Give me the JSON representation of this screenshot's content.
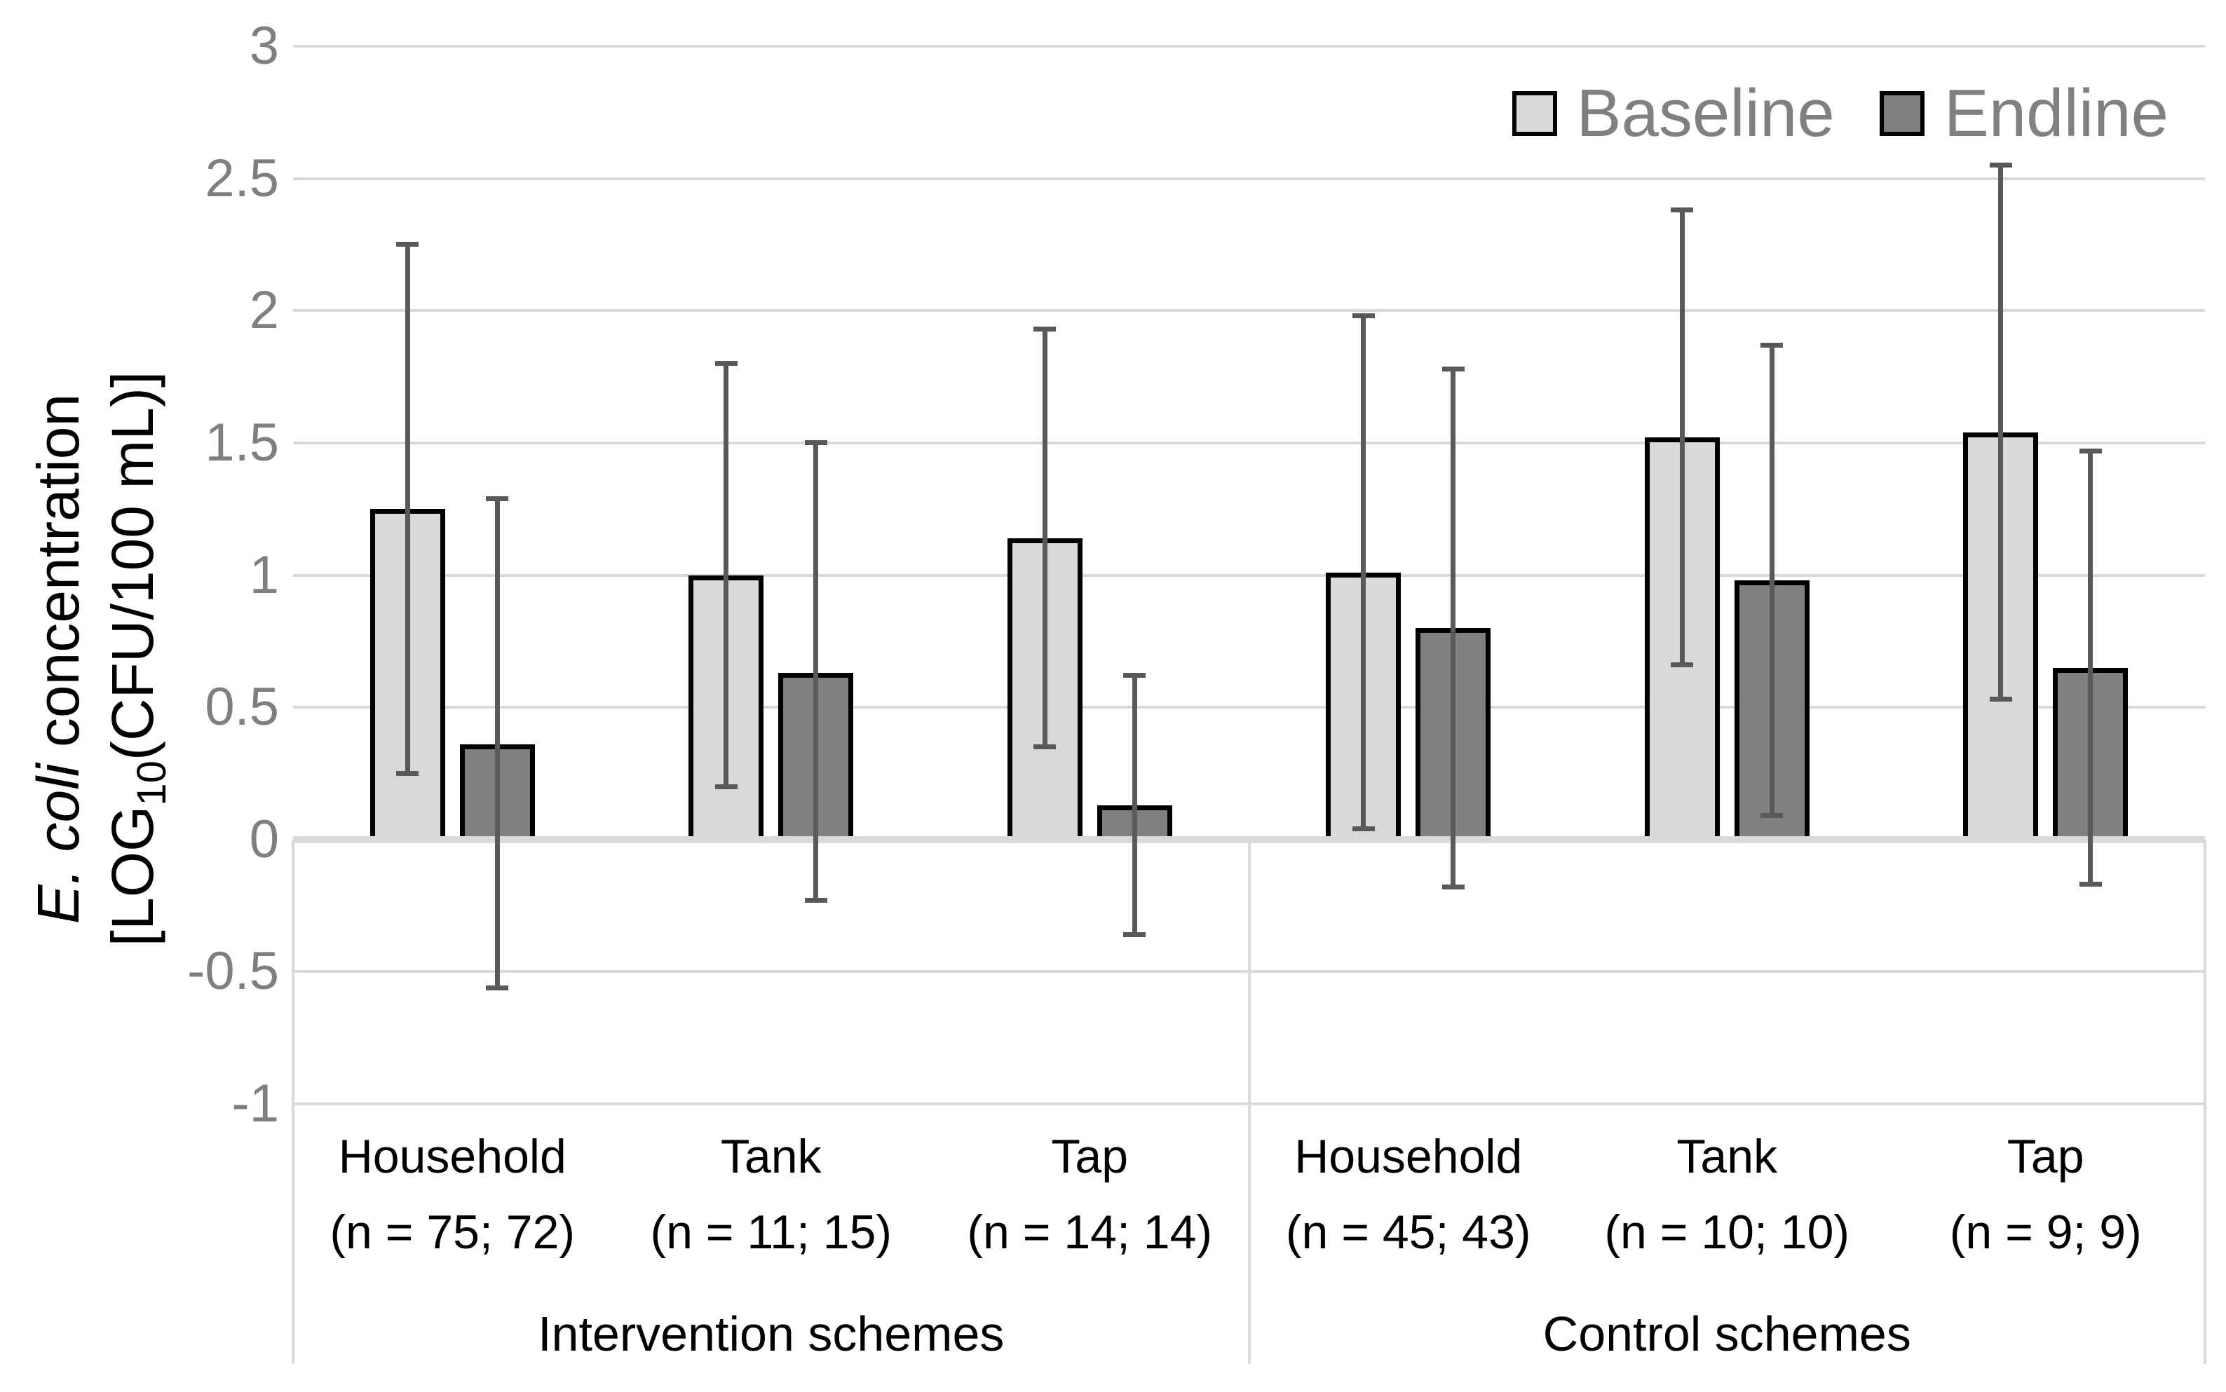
{
  "chart_data": {
    "type": "bar",
    "title": "",
    "ylabel_line1_italic": "E. coli",
    "ylabel_line1_rest": " concentration",
    "ylabel_line2_prefix": "[LOG",
    "ylabel_line2_sub": "10",
    "ylabel_line2_suffix": "(CFU/100 mL)]",
    "ylim": [
      -1,
      3
    ],
    "yticks": [
      3,
      2.5,
      2,
      1.5,
      1,
      0.5,
      0,
      -0.5,
      -1
    ],
    "ytick_labels": [
      "3",
      "2.5",
      "2",
      "1.5",
      "1",
      "0.5",
      "0",
      "-0.5",
      "-1"
    ],
    "grid": true,
    "legend_position": "top-right",
    "legend": [
      {
        "name": "Baseline",
        "color": "#d9d9d9"
      },
      {
        "name": "Endline",
        "color": "#808080"
      }
    ],
    "categories": [
      {
        "name": "Household",
        "n_label": "(n = 75; 72)",
        "section": 0
      },
      {
        "name": "Tank",
        "n_label": "(n = 11; 15)",
        "section": 0
      },
      {
        "name": "Tap",
        "n_label": "(n = 14; 14)",
        "section": 0
      },
      {
        "name": "Household",
        "n_label": "(n = 45; 43)",
        "section": 1
      },
      {
        "name": "Tank",
        "n_label": "(n = 10; 10)",
        "section": 1
      },
      {
        "name": "Tap",
        "n_label": "(n = 9; 9)",
        "section": 1
      }
    ],
    "sections": [
      {
        "label": "Intervention schemes",
        "category_count": 3
      },
      {
        "label": "Control schemes",
        "category_count": 3
      }
    ],
    "series": [
      {
        "name": "Baseline",
        "color": "#d9d9d9",
        "values": [
          1.25,
          1.0,
          1.14,
          1.01,
          1.52,
          1.54
        ],
        "err_low": [
          0.25,
          0.2,
          0.35,
          0.04,
          0.66,
          0.53
        ],
        "err_high": [
          2.25,
          1.8,
          1.93,
          1.98,
          2.38,
          2.55
        ]
      },
      {
        "name": "Endline",
        "color": "#808080",
        "values": [
          0.36,
          0.63,
          0.13,
          0.8,
          0.98,
          0.65
        ],
        "err_low": [
          -0.56,
          -0.23,
          -0.36,
          -0.18,
          0.09,
          -0.17
        ],
        "err_high": [
          1.29,
          1.5,
          0.62,
          1.78,
          1.87,
          1.47
        ]
      }
    ],
    "colors": {
      "bar_border": "#000000",
      "error_bar": "#595959",
      "gridline": "#d9d9d9",
      "tick_text": "#7f7f7f",
      "label_text": "#000000",
      "legend_text": "#808080"
    }
  }
}
